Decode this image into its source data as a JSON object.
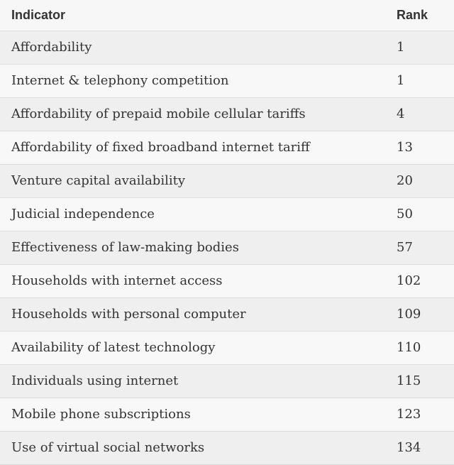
{
  "table": {
    "header": [
      "Indicator",
      "Rank"
    ],
    "rows": [
      [
        "Affordability",
        1
      ],
      [
        "Internet & telephony competition",
        1
      ],
      [
        "Affordability of prepaid mobile cellular tariffs",
        4
      ],
      [
        "Affordability of fixed broadband internet tariff",
        13
      ],
      [
        "Venture capital availability",
        20
      ],
      [
        "Judicial independence",
        50
      ],
      [
        "Effectiveness of law-making bodies",
        57
      ],
      [
        "Households with internet access",
        102
      ],
      [
        "Households with personal computer",
        109
      ],
      [
        "Availability of latest technology",
        110
      ],
      [
        "Individuals using internet",
        115
      ],
      [
        "Mobile phone subscriptions",
        123
      ],
      [
        "Use of virtual social networks",
        134
      ]
    ]
  }
}
